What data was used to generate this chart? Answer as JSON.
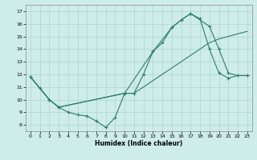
{
  "xlabel": "Humidex (Indice chaleur)",
  "bg_color": "#ceecea",
  "grid_color": "#aed4d0",
  "line_color": "#2e7d6e",
  "xlim": [
    -0.5,
    23.5
  ],
  "ylim": [
    7.5,
    17.5
  ],
  "xticks": [
    0,
    1,
    2,
    3,
    4,
    5,
    6,
    7,
    8,
    9,
    10,
    11,
    12,
    13,
    14,
    15,
    16,
    17,
    18,
    19,
    20,
    21,
    22,
    23
  ],
  "yticks": [
    8,
    9,
    10,
    11,
    12,
    13,
    14,
    15,
    16,
    17
  ],
  "line1_zigzag": {
    "x": [
      0,
      1,
      2,
      3,
      4,
      5,
      6,
      7,
      8,
      9,
      10,
      11,
      12,
      13,
      14,
      15,
      16,
      17,
      18,
      19,
      20,
      21,
      22,
      23
    ],
    "y": [
      11.8,
      10.9,
      10.0,
      9.4,
      9.0,
      8.8,
      8.7,
      8.3,
      7.8,
      8.6,
      10.5,
      10.5,
      12.0,
      13.8,
      14.5,
      15.7,
      16.3,
      16.8,
      16.4,
      14.0,
      12.1,
      11.7,
      11.9,
      11.9
    ]
  },
  "line2_upper": {
    "x": [
      0,
      2,
      3,
      10,
      13,
      15,
      16,
      17,
      19,
      20,
      21,
      22,
      23
    ],
    "y": [
      11.8,
      10.0,
      9.4,
      10.5,
      13.8,
      15.7,
      16.3,
      16.8,
      15.8,
      14.0,
      12.1,
      11.9,
      11.9
    ]
  },
  "line3_lower": {
    "x": [
      0,
      1,
      2,
      3,
      10,
      11,
      12,
      13,
      14,
      15,
      16,
      17,
      18,
      19,
      20,
      21,
      22,
      23
    ],
    "y": [
      11.8,
      10.9,
      10.0,
      9.4,
      10.5,
      10.5,
      11.0,
      11.5,
      12.0,
      12.5,
      13.0,
      13.5,
      14.0,
      14.5,
      14.8,
      15.0,
      15.2,
      15.4
    ]
  }
}
